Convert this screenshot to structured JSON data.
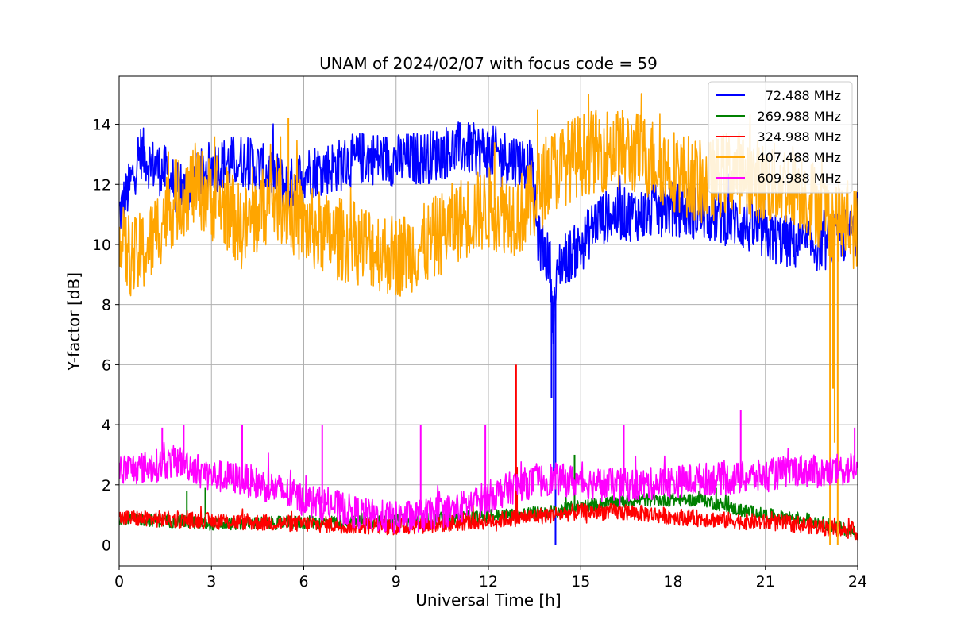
{
  "chart_data": {
    "type": "line",
    "title": "UNAM of 2024/02/07 with focus code = 59",
    "xlabel": "Universal Time [h]",
    "ylabel": "Y-factor [dB]",
    "xlim": [
      0,
      24
    ],
    "ylim": [
      -0.7,
      15.6
    ],
    "xticks": [
      0,
      3,
      6,
      9,
      12,
      15,
      18,
      21,
      24
    ],
    "yticks": [
      0,
      2,
      4,
      6,
      8,
      10,
      12,
      14
    ],
    "grid": true,
    "legend_position": "top-right",
    "series": [
      {
        "name": "72.488 MHz",
        "color": "#0000ff",
        "noise": 0.9,
        "points": [
          [
            0,
            11.0
          ],
          [
            0.3,
            11.8
          ],
          [
            0.7,
            13.1
          ],
          [
            1.0,
            12.7
          ],
          [
            1.5,
            12.4
          ],
          [
            2.0,
            11.7
          ],
          [
            3.0,
            12.6
          ],
          [
            4.0,
            12.8
          ],
          [
            5.0,
            12.3
          ],
          [
            5.5,
            11.9
          ],
          [
            6.0,
            12.4
          ],
          [
            7.0,
            12.6
          ],
          [
            8.0,
            12.9
          ],
          [
            9.0,
            12.8
          ],
          [
            10.0,
            12.9
          ],
          [
            11.0,
            13.2
          ],
          [
            12.0,
            13.1
          ],
          [
            13.0,
            12.8
          ],
          [
            13.4,
            12.6
          ],
          [
            13.6,
            10.2
          ],
          [
            14.0,
            9.4
          ],
          [
            14.1,
            7.5
          ],
          [
            14.3,
            9.4
          ],
          [
            15.0,
            9.9
          ],
          [
            15.5,
            10.8
          ],
          [
            16.0,
            11.0
          ],
          [
            17.0,
            11.0
          ],
          [
            18.0,
            11.2
          ],
          [
            19.0,
            11.0
          ],
          [
            20.0,
            10.8
          ],
          [
            21.0,
            10.3
          ],
          [
            22.0,
            10.0
          ],
          [
            23.0,
            10.0
          ],
          [
            24.0,
            10.5
          ]
        ],
        "spikes": [
          [
            14.05,
            4.9
          ],
          [
            14.12,
            2.3
          ],
          [
            14.18,
            0.0
          ]
        ]
      },
      {
        "name": "269.988 MHz",
        "color": "#008000",
        "noise": 0.22,
        "points": [
          [
            0,
            0.9
          ],
          [
            3,
            0.7
          ],
          [
            6,
            0.75
          ],
          [
            9,
            0.8
          ],
          [
            12,
            0.95
          ],
          [
            14,
            1.1
          ],
          [
            15,
            1.3
          ],
          [
            16,
            1.4
          ],
          [
            17,
            1.5
          ],
          [
            18,
            1.5
          ],
          [
            19,
            1.5
          ],
          [
            20,
            1.2
          ],
          [
            21,
            1.0
          ],
          [
            22,
            0.9
          ],
          [
            23,
            0.7
          ],
          [
            24,
            0.4
          ]
        ],
        "spikes": [
          [
            2.2,
            1.8
          ],
          [
            2.8,
            1.9
          ],
          [
            14.8,
            3.0
          ],
          [
            19.4,
            1.9
          ]
        ]
      },
      {
        "name": "324.988 MHz",
        "color": "#ff0000",
        "noise": 0.28,
        "points": [
          [
            0,
            0.9
          ],
          [
            3,
            0.8
          ],
          [
            6,
            0.7
          ],
          [
            9,
            0.6
          ],
          [
            12,
            0.8
          ],
          [
            14,
            1.0
          ],
          [
            15,
            1.1
          ],
          [
            16,
            1.1
          ],
          [
            17,
            1.05
          ],
          [
            18,
            0.95
          ],
          [
            20,
            0.8
          ],
          [
            22,
            0.7
          ],
          [
            24,
            0.45
          ]
        ],
        "spikes": [
          [
            12.9,
            6.0
          ],
          [
            12.93,
            2.6
          ]
        ]
      },
      {
        "name": "407.488 MHz",
        "color": "#ffa500",
        "noise": 1.4,
        "points": [
          [
            0,
            10.0
          ],
          [
            0.5,
            9.5
          ],
          [
            1.0,
            10.0
          ],
          [
            1.5,
            11.0
          ],
          [
            2.0,
            11.6
          ],
          [
            2.5,
            12.0
          ],
          [
            3.0,
            11.5
          ],
          [
            3.5,
            11.2
          ],
          [
            4.0,
            10.5
          ],
          [
            4.5,
            11.0
          ],
          [
            5.0,
            11.6
          ],
          [
            5.5,
            11.2
          ],
          [
            6.0,
            10.6
          ],
          [
            7.0,
            10.2
          ],
          [
            8.0,
            10.0
          ],
          [
            9.0,
            9.6
          ],
          [
            10.0,
            10.0
          ],
          [
            11.0,
            10.8
          ],
          [
            12.0,
            11.2
          ],
          [
            13.0,
            11.0
          ],
          [
            13.5,
            11.5
          ],
          [
            14.0,
            12.4
          ],
          [
            15.0,
            13.0
          ],
          [
            16.0,
            13.2
          ],
          [
            17.0,
            13.0
          ],
          [
            18.0,
            12.5
          ],
          [
            19.0,
            12.0
          ],
          [
            20.0,
            12.5
          ],
          [
            21.0,
            12.0
          ],
          [
            22.0,
            12.0
          ],
          [
            23.0,
            11.0
          ],
          [
            24.0,
            10.5
          ]
        ],
        "spikes": [
          [
            1.6,
            13.1
          ],
          [
            3.1,
            13.6
          ],
          [
            5.5,
            14.2
          ],
          [
            12.2,
            13.4
          ],
          [
            13.6,
            14.5
          ],
          [
            15.5,
            14.3
          ],
          [
            20.5,
            14.0
          ],
          [
            23.1,
            0.0
          ],
          [
            23.2,
            5.2
          ],
          [
            23.25,
            3.4
          ],
          [
            23.35,
            0.0
          ]
        ]
      },
      {
        "name": "609.988 MHz",
        "color": "#ff00ff",
        "noise": 0.55,
        "points": [
          [
            0,
            2.5
          ],
          [
            1.0,
            2.6
          ],
          [
            2.0,
            2.8
          ],
          [
            3.0,
            2.3
          ],
          [
            4.0,
            2.2
          ],
          [
            5.0,
            1.9
          ],
          [
            6.0,
            1.5
          ],
          [
            7.0,
            1.3
          ],
          [
            8.0,
            1.0
          ],
          [
            9.0,
            0.9
          ],
          [
            10.0,
            1.0
          ],
          [
            11.0,
            1.2
          ],
          [
            12.0,
            1.6
          ],
          [
            13.0,
            2.0
          ],
          [
            14.0,
            2.2
          ],
          [
            15.0,
            2.1
          ],
          [
            16.0,
            2.0
          ],
          [
            17.0,
            2.0
          ],
          [
            18.0,
            2.1
          ],
          [
            19.0,
            2.2
          ],
          [
            20.0,
            2.2
          ],
          [
            21.0,
            2.3
          ],
          [
            22.0,
            2.5
          ],
          [
            23.0,
            2.4
          ],
          [
            24.0,
            2.6
          ]
        ],
        "spikes": [
          [
            1.4,
            3.9
          ],
          [
            2.1,
            4.0
          ],
          [
            4.0,
            4.0
          ],
          [
            6.6,
            4.0
          ],
          [
            9.8,
            4.0
          ],
          [
            11.9,
            4.0
          ],
          [
            16.4,
            4.0
          ],
          [
            20.2,
            4.5
          ],
          [
            23.9,
            3.9
          ]
        ]
      }
    ]
  }
}
